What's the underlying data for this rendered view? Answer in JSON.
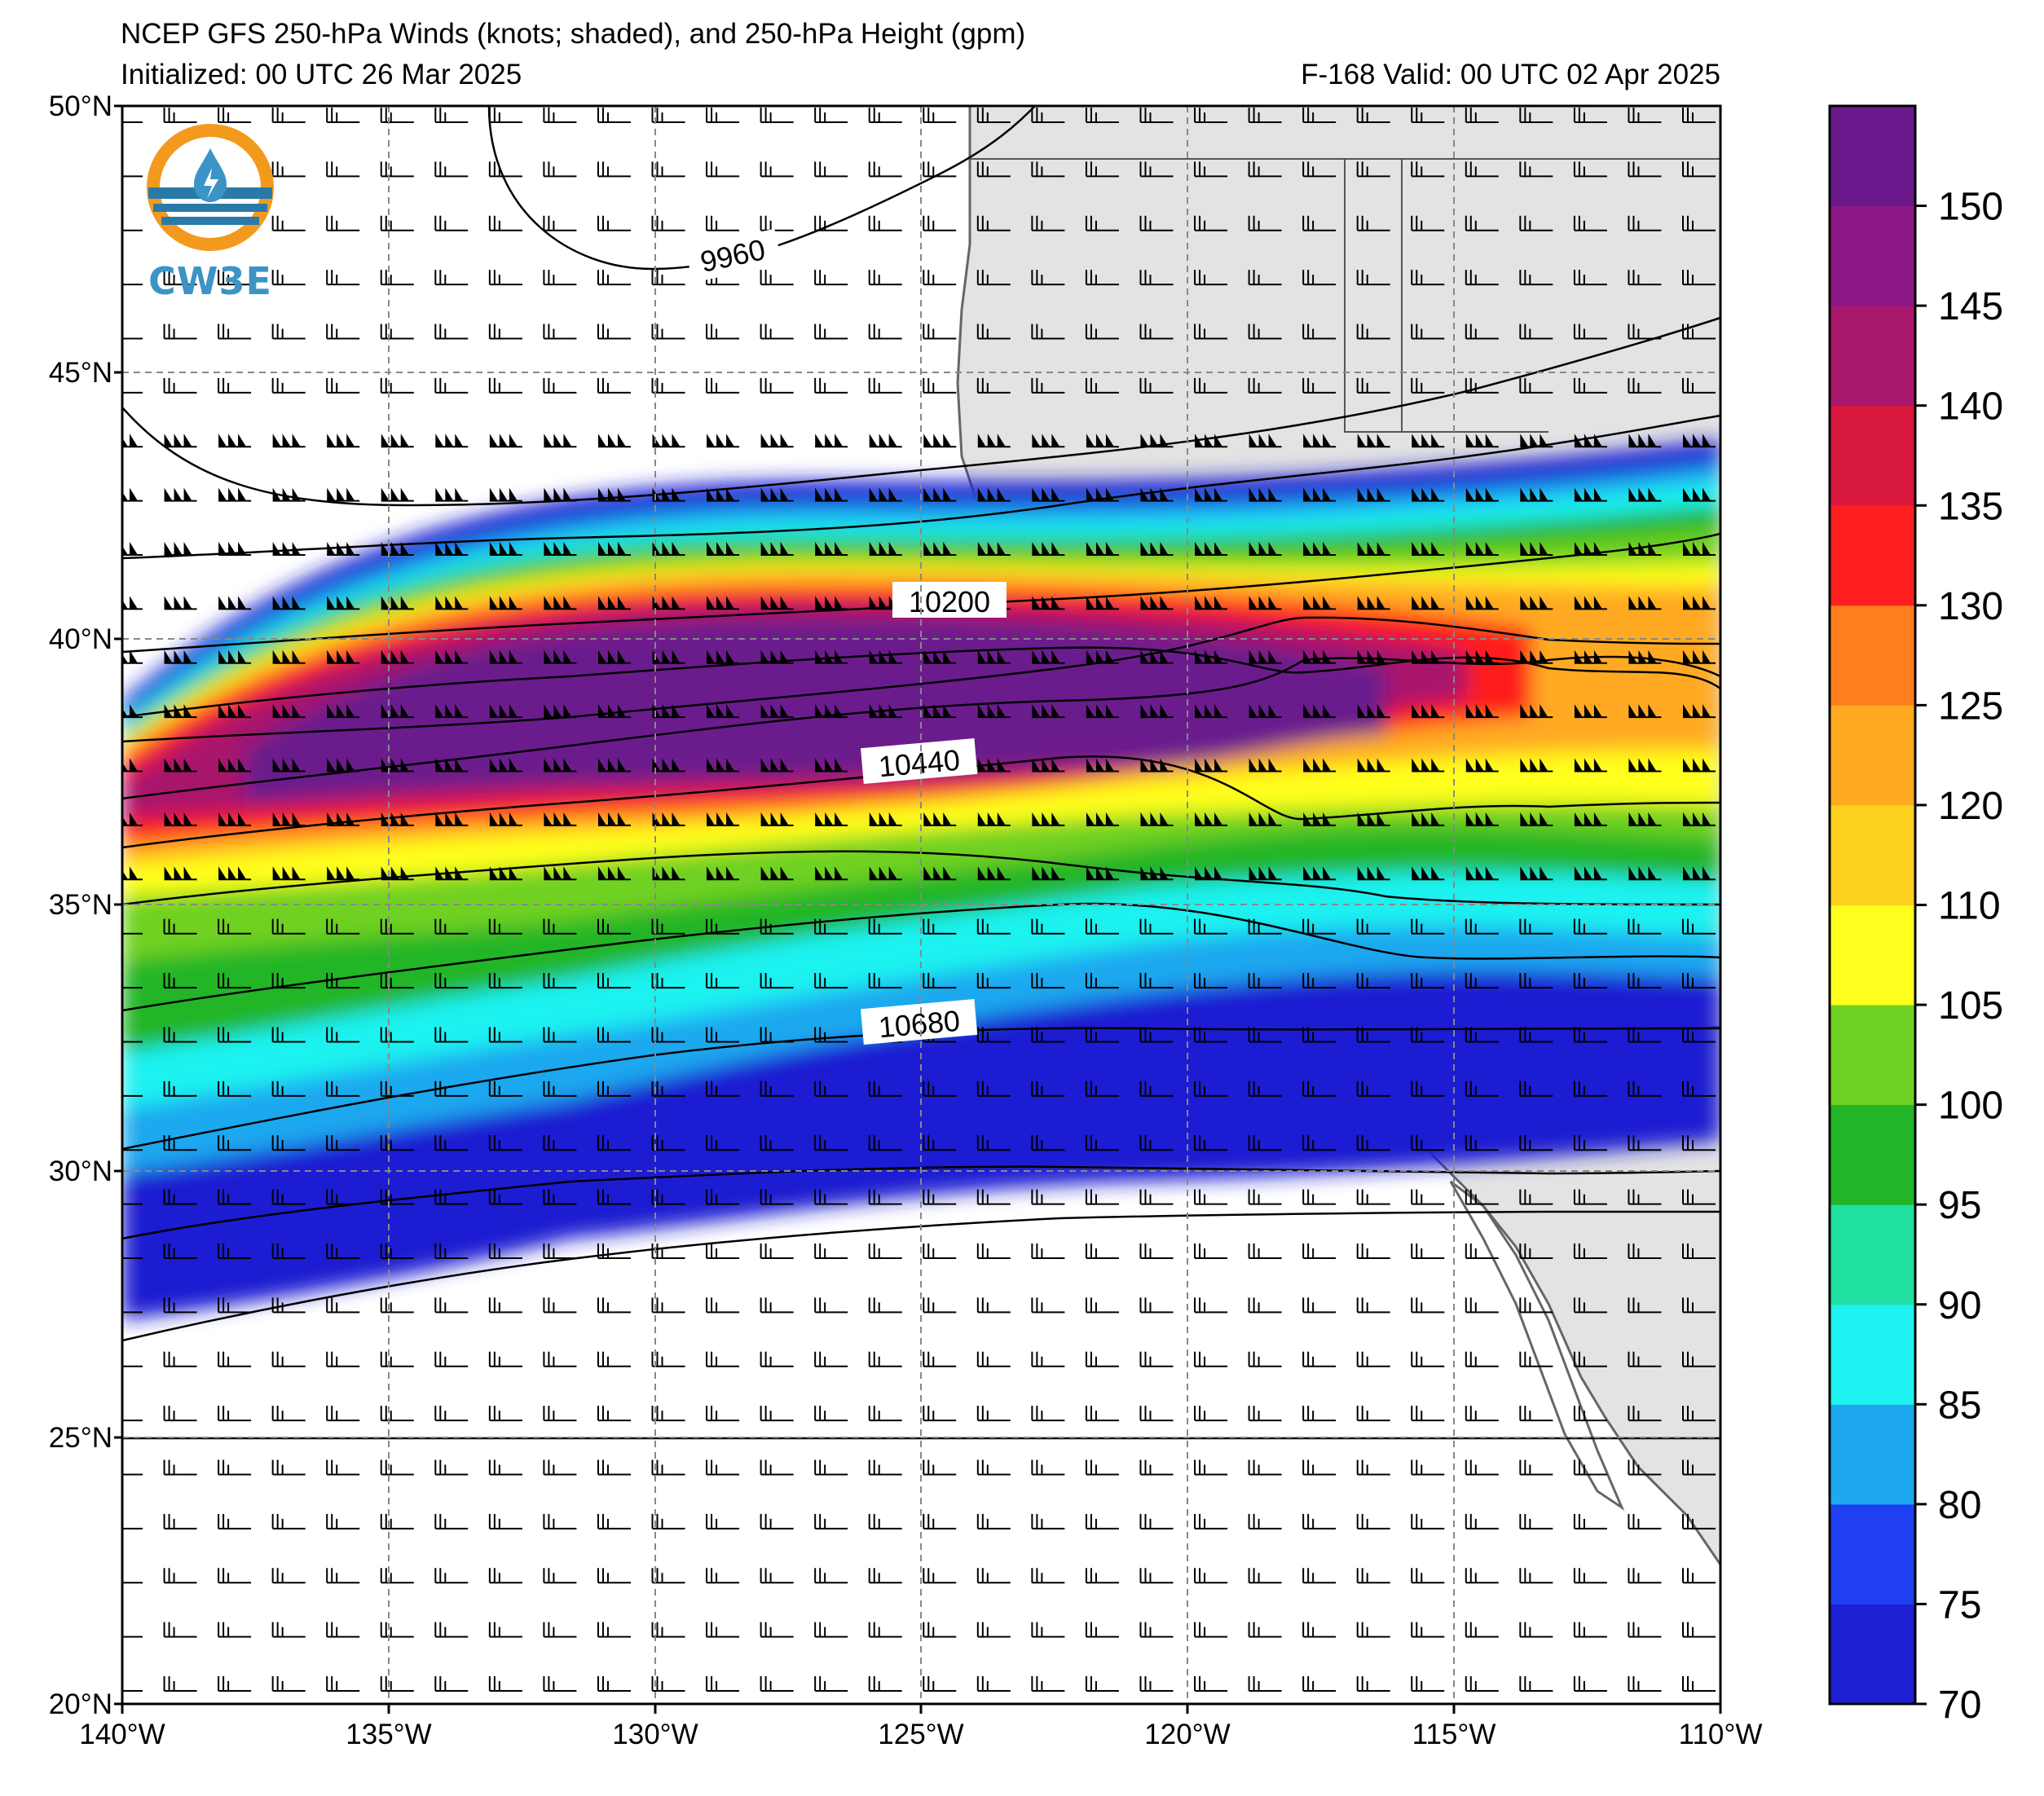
{
  "title_line1": "NCEP GFS 250-hPa Winds (knots; shaded), and 250-hPa Height (gpm)",
  "title_line2": "Initialized: 00 UTC 26 Mar 2025",
  "valid_text": "F-168  Valid: 00 UTC 02 Apr 2025",
  "logo_text": "CW3E",
  "lat_labels": [
    "50°N",
    "45°N",
    "40°N",
    "35°N",
    "30°N",
    "25°N",
    "20°N"
  ],
  "lon_labels": [
    "140°W",
    "135°W",
    "130°W",
    "125°W",
    "120°W",
    "115°W",
    "110°W"
  ],
  "contour_labels": [
    "9960",
    "10200",
    "10440",
    "10680"
  ],
  "colorbar": {
    "ticks": [
      "70",
      "75",
      "80",
      "85",
      "90",
      "95",
      "100",
      "105",
      "110",
      "120",
      "125",
      "130",
      "135",
      "140",
      "145",
      "150"
    ],
    "levels": [
      {
        "v": 70,
        "color": "#1e1ed2"
      },
      {
        "v": 75,
        "color": "#1f3ff0"
      },
      {
        "v": 80,
        "color": "#1ea8ef"
      },
      {
        "v": 85,
        "color": "#1ff2f0"
      },
      {
        "v": 90,
        "color": "#1fe0a0"
      },
      {
        "v": 95,
        "color": "#22b528"
      },
      {
        "v": 100,
        "color": "#6fd123"
      },
      {
        "v": 105,
        "color": "#ffff1e"
      },
      {
        "v": 110,
        "color": "#ffd21f"
      },
      {
        "v": 120,
        "color": "#ffaa20"
      },
      {
        "v": 125,
        "color": "#ff7f1f"
      },
      {
        "v": 130,
        "color": "#ff1f1f"
      },
      {
        "v": 135,
        "color": "#d8183c"
      },
      {
        "v": 140,
        "color": "#a8176c"
      },
      {
        "v": 145,
        "color": "#8e1786"
      },
      {
        "v": 150,
        "color": "#6b1a8d"
      }
    ]
  },
  "colors": {
    "land": "#e3e3e3",
    "coast": "#666666",
    "grid": "#888888"
  }
}
